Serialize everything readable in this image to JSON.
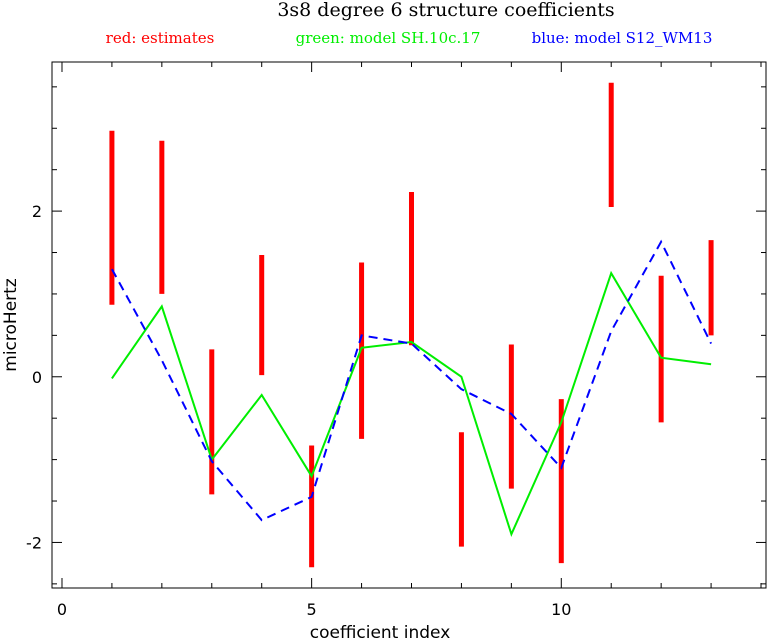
{
  "chart_data": {
    "type": "line",
    "title": "3s8 degree 6 structure coefficients",
    "xlabel": "coefficient index",
    "ylabel": "microHertz",
    "xlim": [
      -0.2,
      14.1
    ],
    "ylim": [
      -2.55,
      3.8
    ],
    "x_ticks": [
      0,
      5,
      10
    ],
    "y_ticks": [
      -2,
      0,
      2
    ],
    "x_minor_step": 1,
    "y_minor_step": 0.5,
    "grid": false,
    "legend": [
      {
        "label": "red: estimates",
        "color": "#ff0000"
      },
      {
        "label": "green: model SH.10c.17",
        "color": "#00ee00"
      },
      {
        "label": "blue: model S12_WM13",
        "color": "#0000ff"
      }
    ],
    "series": [
      {
        "style": "errorbar",
        "color": "#ff0000",
        "x": [
          1,
          2,
          3,
          4,
          5,
          6,
          7,
          8,
          9,
          10,
          11,
          12,
          13
        ],
        "low": [
          0.87,
          1.0,
          -1.42,
          0.02,
          -2.3,
          -0.75,
          0.38,
          -2.05,
          -1.35,
          -2.25,
          2.05,
          -0.55,
          0.5
        ],
        "high": [
          2.97,
          2.85,
          0.33,
          1.47,
          -0.83,
          1.38,
          2.23,
          -0.67,
          0.39,
          -0.27,
          3.55,
          1.22,
          1.65
        ]
      },
      {
        "style": "solid",
        "color": "#00ee00",
        "x": [
          1,
          2,
          3,
          4,
          5,
          6,
          7,
          8,
          9,
          10,
          11,
          12,
          13
        ],
        "values": [
          -0.02,
          0.85,
          -1.0,
          -0.22,
          -1.2,
          0.35,
          0.42,
          0.0,
          -1.9,
          -0.55,
          1.25,
          0.23,
          0.15
        ]
      },
      {
        "style": "dashed",
        "color": "#0000ff",
        "x": [
          1,
          2,
          3,
          4,
          5,
          6,
          7,
          8,
          9,
          10,
          11,
          12,
          13
        ],
        "values": [
          1.3,
          0.2,
          -1.02,
          -1.73,
          -1.45,
          0.5,
          0.4,
          -0.15,
          -0.45,
          -1.1,
          0.55,
          1.63,
          0.4
        ]
      }
    ]
  }
}
